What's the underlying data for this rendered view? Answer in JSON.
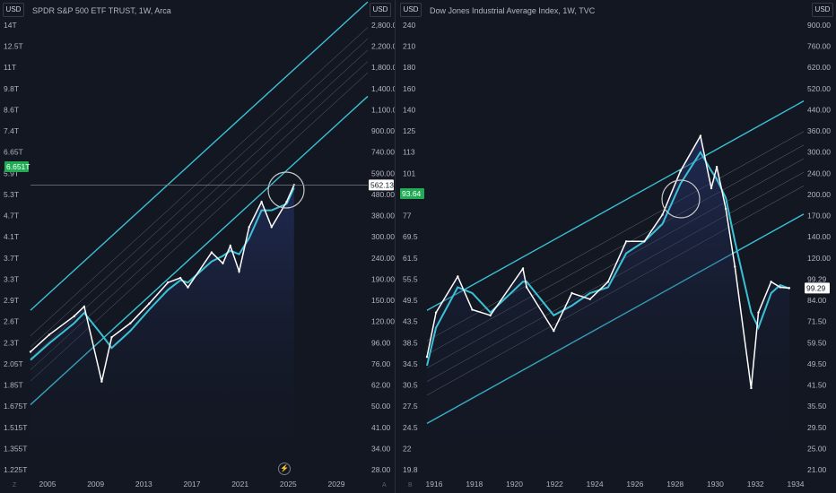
{
  "panes": [
    {
      "title": "SPDR S&P 500 ETF TRUST, 1W, Arca",
      "currency": "USD",
      "left_axis_ticks": [
        "14T",
        "12.5T",
        "11T",
        "9.8T",
        "8.6T",
        "7.4T",
        "6.65T",
        "5.9T",
        "5.3T",
        "4.7T",
        "4.1T",
        "3.7T",
        "3.3T",
        "2.9T",
        "2.6T",
        "2.3T",
        "2.05T",
        "1.85T",
        "1.675T",
        "1.515T",
        "1.355T",
        "1.225T"
      ],
      "right_axis_ticks": [
        "2,800.00",
        "2,200.00",
        "1,800.00",
        "1,400.00",
        "1,100.00",
        "900.00",
        "740.00",
        "590.00",
        "480.00",
        "380.00",
        "300.00",
        "240.00",
        "190.00",
        "150.00",
        "120.00",
        "96.00",
        "76.00",
        "62.00",
        "50.00",
        "41.00",
        "34.00",
        "28.00"
      ],
      "x_ticks": [
        "2005",
        "2009",
        "2013",
        "2017",
        "2021",
        "2025",
        "2029"
      ],
      "last_price": "562.13",
      "left_price_tag": "6.651T",
      "corner_left": "Z",
      "corner_right": "A",
      "bolt_symbol": "⚡"
    },
    {
      "title": "Dow Jones Industrial Average Index, 1W, TVC",
      "currency": "USD",
      "left_axis_ticks": [
        "240",
        "210",
        "180",
        "160",
        "140",
        "125",
        "113",
        "101",
        "89",
        "77",
        "69.5",
        "61.5",
        "55.5",
        "49.5",
        "43.5",
        "38.5",
        "34.5",
        "30.5",
        "27.5",
        "24.5",
        "22",
        "19.8"
      ],
      "right_axis_ticks": [
        "900.00",
        "760.00",
        "620.00",
        "520.00",
        "440.00",
        "360.00",
        "300.00",
        "240.00",
        "200.00",
        "170.00",
        "140.00",
        "120.00",
        "99.29",
        "84.00",
        "71.50",
        "59.50",
        "49.50",
        "41.50",
        "35.50",
        "29.50",
        "25.00",
        "21.00"
      ],
      "x_ticks": [
        "1916",
        "1918",
        "1920",
        "1922",
        "1924",
        "1926",
        "1928",
        "1930",
        "1932",
        "1934"
      ],
      "last_price": "99.29",
      "left_price_tag": "93.64",
      "corner_left": "B"
    }
  ],
  "chart_data": [
    {
      "type": "line",
      "title": "SPDR S&P 500 ETF TRUST, 1W, Arca",
      "log_scale": true,
      "x": [
        2003.5,
        2005,
        2007,
        2007.8,
        2009.2,
        2010,
        2011.5,
        2013,
        2014.5,
        2015.5,
        2016.1,
        2018,
        2018.9,
        2019.5,
        2020.2,
        2021,
        2022,
        2022.8,
        2024,
        2024.6
      ],
      "series": [
        {
          "values": [
            96,
            115,
            140,
            155,
            70,
            112,
            130,
            160,
            200,
            210,
            190,
            275,
            245,
            295,
            225,
            360,
            470,
            360,
            470,
            562
          ]
        },
        {
          "values": [
            88,
            105,
            130,
            145,
            115,
            100,
            120,
            150,
            185,
            205,
            200,
            250,
            265,
            280,
            270,
            320,
            430,
            430,
            460,
            545
          ]
        }
      ],
      "last_value": 562.13,
      "ylim": [
        26,
        3000
      ],
      "xlim": [
        2003.5,
        2030.5
      ],
      "legend": "none",
      "grid": false
    },
    {
      "type": "line",
      "title": "Dow Jones Industrial Average Index, 1W, TVC",
      "log_scale": true,
      "x": [
        1914.5,
        1915,
        1916.2,
        1917,
        1918,
        1919.8,
        1920,
        1921.5,
        1922.5,
        1923.5,
        1924.5,
        1925.5,
        1926.5,
        1927.5,
        1928.5,
        1929.6,
        1930.2,
        1930.5,
        1931,
        1931.5,
        1932.4,
        1932.8,
        1933.5,
        1934,
        1934.5
      ],
      "series": [
        {
          "values": [
            54,
            80,
            110,
            82,
            78,
            118,
            100,
            68,
            95,
            90,
            105,
            150,
            150,
            190,
            280,
            381,
            240,
            290,
            200,
            120,
            41,
            80,
            105,
            100,
            99.29
          ]
        },
        {
          "values": [
            50,
            70,
            100,
            95,
            80,
            105,
            105,
            78,
            85,
            95,
            100,
            135,
            150,
            175,
            250,
            330,
            280,
            260,
            220,
            150,
            80,
            70,
            95,
            102,
            99
          ]
        }
      ],
      "last_value": 99.29,
      "ylim": [
        19,
        1000
      ],
      "xlim": [
        1914.5,
        1935.3
      ],
      "legend": "none",
      "grid": false
    }
  ]
}
